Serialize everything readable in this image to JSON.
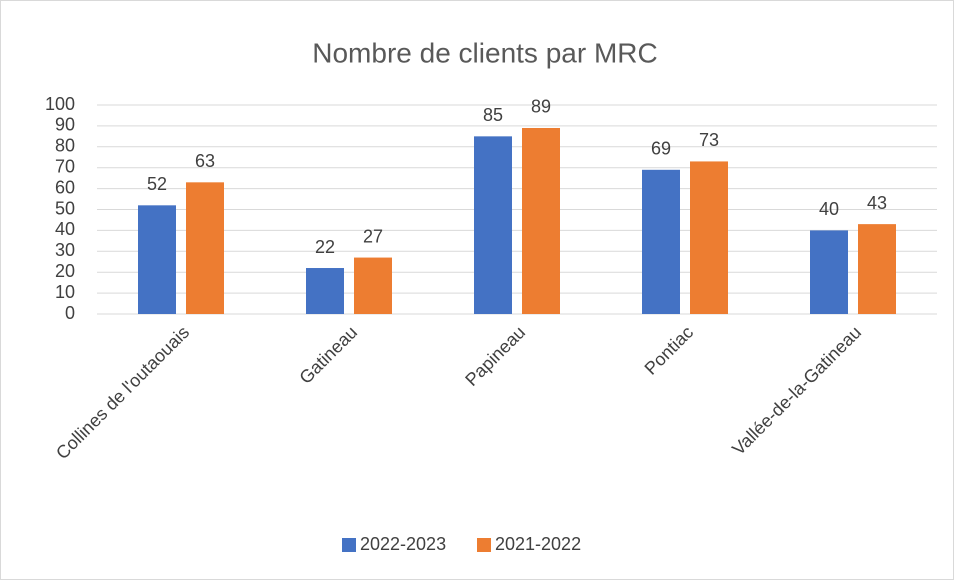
{
  "chart_data": {
    "type": "bar",
    "title": "Nombre de clients par MRC",
    "categories": [
      "Collines de l'outaouais",
      "Gatineau",
      "Papineau",
      "Pontiac",
      "Vallée-de-la-Gatineau"
    ],
    "series": [
      {
        "name": "2022-2023",
        "color": "#4472c4",
        "values": [
          52,
          22,
          85,
          69,
          40
        ]
      },
      {
        "name": "2021-2022",
        "color": "#ed7d31",
        "values": [
          63,
          27,
          89,
          73,
          43
        ]
      }
    ],
    "ylim": [
      0,
      100
    ],
    "yticks": [
      0,
      10,
      20,
      30,
      40,
      50,
      60,
      70,
      80,
      90,
      100
    ],
    "grid": true,
    "legend": "bottom"
  }
}
